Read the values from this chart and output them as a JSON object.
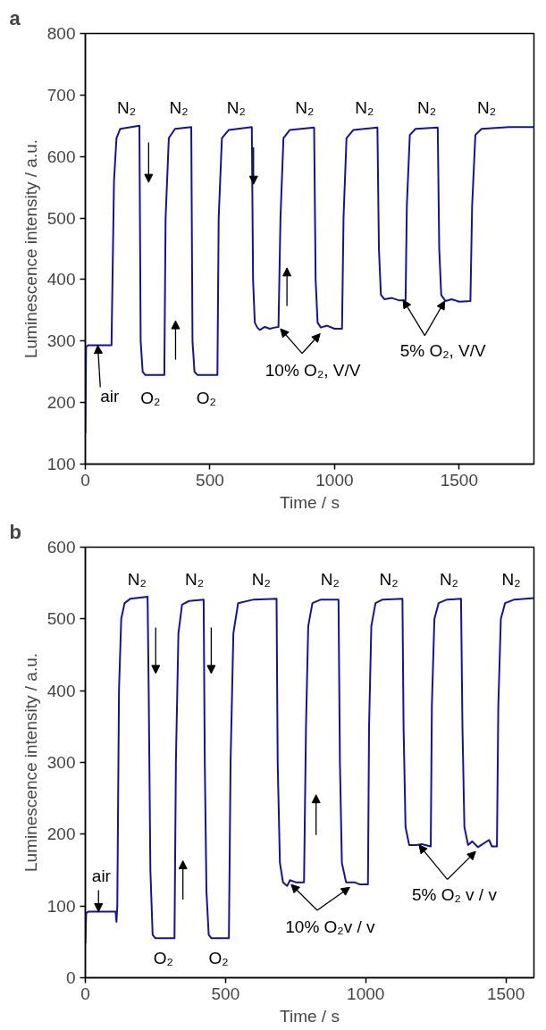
{
  "chart_data": [
    {
      "type": "line",
      "title": "a",
      "xlabel": "Time / s",
      "ylabel": "Luminescence intensity / a.u.",
      "xlim": [
        0,
        1800
      ],
      "ylim": [
        100,
        800
      ],
      "xticks": [
        0,
        500,
        1000,
        1500
      ],
      "yticks": [
        100,
        200,
        300,
        400,
        500,
        600,
        700,
        800
      ],
      "grid": false,
      "x": [
        0,
        3,
        10,
        105,
        115,
        125,
        140,
        217,
        222,
        230,
        240,
        317,
        322,
        335,
        360,
        425,
        430,
        438,
        450,
        530,
        535,
        548,
        575,
        668,
        673,
        680,
        690,
        700,
        720,
        740,
        760,
        775,
        783,
        795,
        820,
        918,
        924,
        932,
        945,
        970,
        1000,
        1030,
        1036,
        1048,
        1075,
        1172,
        1178,
        1186,
        1200,
        1230,
        1260,
        1285,
        1290,
        1302,
        1325,
        1414,
        1420,
        1428,
        1445,
        1470,
        1500,
        1545,
        1552,
        1565,
        1590,
        1700,
        1800
      ],
      "series": [
        {
          "color": "#141494",
          "values": [
            150,
            290,
            293,
            293,
            560,
            630,
            645,
            650,
            300,
            250,
            245,
            245,
            500,
            630,
            645,
            648,
            300,
            250,
            245,
            245,
            500,
            630,
            643,
            648,
            400,
            330,
            322,
            318,
            323,
            320,
            322,
            323,
            500,
            630,
            643,
            647,
            400,
            330,
            322,
            325,
            320,
            320,
            500,
            630,
            643,
            647,
            450,
            375,
            368,
            370,
            366,
            366,
            520,
            635,
            645,
            647,
            450,
            375,
            365,
            368,
            364,
            365,
            520,
            635,
            645,
            648,
            648
          ]
        }
      ],
      "annotations": [
        "N₂",
        "N₂",
        "N₂",
        "N₂",
        "N₂",
        "N₂",
        "N₂",
        "O₂",
        "O₂",
        {
          "text": "air",
          "x": 50,
          "y": 293
        },
        {
          "text": "10% O₂, V/V",
          "x": 783,
          "y": 320
        },
        {
          "text": "5% O₂, V/V",
          "x": 1275,
          "y": 367
        }
      ]
    },
    {
      "type": "line",
      "title": "b",
      "xlabel": "Time / s",
      "ylabel": "Luminescence intensity / a.u.",
      "xlim": [
        0,
        1600
      ],
      "ylim": [
        0,
        600
      ],
      "xticks": [
        0,
        500,
        1000,
        1500
      ],
      "yticks": [
        0,
        100,
        200,
        300,
        400,
        500,
        600
      ],
      "grid": false,
      "x": [
        0,
        3,
        10,
        108,
        111,
        114,
        120,
        128,
        140,
        160,
        222,
        226,
        232,
        240,
        250,
        318,
        323,
        332,
        345,
        370,
        422,
        426,
        432,
        440,
        450,
        512,
        518,
        528,
        545,
        600,
        682,
        686,
        694,
        705,
        720,
        730,
        750,
        780,
        787,
        795,
        810,
        840,
        903,
        908,
        915,
        930,
        960,
        980,
        1008,
        1012,
        1020,
        1035,
        1060,
        1131,
        1135,
        1142,
        1155,
        1180,
        1200,
        1232,
        1236,
        1245,
        1260,
        1290,
        1340,
        1345,
        1352,
        1365,
        1380,
        1400,
        1440,
        1450,
        1468,
        1473,
        1482,
        1497,
        1530,
        1600
      ],
      "series": [
        {
          "color": "#141494",
          "values": [
            48,
            90,
            92,
            92,
            78,
            100,
            400,
            500,
            522,
            528,
            531,
            400,
            150,
            60,
            55,
            55,
            300,
            480,
            520,
            525,
            527,
            300,
            120,
            60,
            55,
            55,
            300,
            480,
            522,
            527,
            528,
            300,
            160,
            133,
            128,
            136,
            133,
            133,
            350,
            490,
            522,
            527,
            527,
            300,
            160,
            133,
            133,
            130,
            130,
            350,
            490,
            522,
            527,
            528,
            350,
            210,
            185,
            185,
            186,
            183,
            380,
            500,
            522,
            527,
            528,
            350,
            210,
            185,
            190,
            182,
            192,
            183,
            183,
            380,
            500,
            522,
            527,
            529
          ]
        }
      ],
      "annotations": [
        "N₂",
        "N₂",
        "N₂",
        "N₂",
        "N₂",
        "N₂",
        "N₂",
        "O₂",
        "O₂",
        {
          "text": "air",
          "x": 47,
          "y": 92
        },
        {
          "text": "10% O₂v / v",
          "x": 734,
          "y": 130
        },
        {
          "text": "5% O₂ v / v",
          "x": 1190,
          "y": 185
        }
      ]
    }
  ]
}
